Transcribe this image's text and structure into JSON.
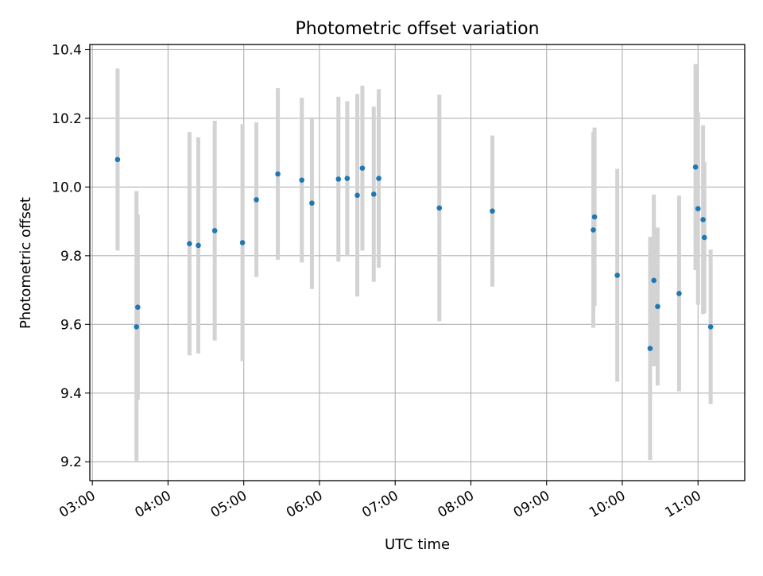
{
  "chart_data": {
    "type": "scatter",
    "title": "Photometric offset variation",
    "xlabel": "UTC time",
    "ylabel": "Photometric offset",
    "x_tick_labels": [
      "03:00",
      "04:00",
      "05:00",
      "06:00",
      "07:00",
      "08:00",
      "09:00",
      "10:00",
      "11:00"
    ],
    "y_tick_labels": [
      "9.2",
      "9.4",
      "9.6",
      "9.8",
      "10.0",
      "10.2",
      "10.4"
    ],
    "y_ticks": [
      9.2,
      9.4,
      9.6,
      9.8,
      10.0,
      10.2,
      10.4
    ],
    "xlim": [
      "02:58",
      "11:37"
    ],
    "ylim": [
      9.145,
      10.415
    ],
    "grid": true,
    "point_color": "#1f77b4",
    "errorbar_color": "#d3d3d3",
    "points": [
      {
        "x": "03:20",
        "y": 10.08,
        "err": 0.265
      },
      {
        "x": "03:35",
        "y": 9.593,
        "err": 0.395
      },
      {
        "x": "03:36",
        "y": 9.65,
        "err": 0.27
      },
      {
        "x": "04:17",
        "y": 9.835,
        "err": 0.325
      },
      {
        "x": "04:24",
        "y": 9.83,
        "err": 0.315
      },
      {
        "x": "04:37",
        "y": 9.873,
        "err": 0.32
      },
      {
        "x": "04:59",
        "y": 9.838,
        "err": 0.345
      },
      {
        "x": "05:10",
        "y": 9.963,
        "err": 0.225
      },
      {
        "x": "05:27",
        "y": 10.038,
        "err": 0.25
      },
      {
        "x": "05:46",
        "y": 10.02,
        "err": 0.24
      },
      {
        "x": "05:54",
        "y": 9.953,
        "err": 0.25
      },
      {
        "x": "06:15",
        "y": 10.023,
        "err": 0.24
      },
      {
        "x": "06:22",
        "y": 10.025,
        "err": 0.225
      },
      {
        "x": "06:30",
        "y": 9.976,
        "err": 0.295
      },
      {
        "x": "06:34",
        "y": 10.055,
        "err": 0.24
      },
      {
        "x": "06:43",
        "y": 9.979,
        "err": 0.255
      },
      {
        "x": "06:47",
        "y": 10.025,
        "err": 0.26
      },
      {
        "x": "07:35",
        "y": 9.939,
        "err": 0.33
      },
      {
        "x": "08:17",
        "y": 9.93,
        "err": 0.22
      },
      {
        "x": "09:37",
        "y": 9.875,
        "err": 0.285
      },
      {
        "x": "09:38",
        "y": 9.913,
        "err": 0.26
      },
      {
        "x": "09:56",
        "y": 9.743,
        "err": 0.31
      },
      {
        "x": "10:22",
        "y": 9.53,
        "err": 0.325
      },
      {
        "x": "10:25",
        "y": 9.728,
        "err": 0.25
      },
      {
        "x": "10:28",
        "y": 9.652,
        "err": 0.23
      },
      {
        "x": "10:45",
        "y": 9.69,
        "err": 0.285
      },
      {
        "x": "10:58",
        "y": 10.058,
        "err": 0.3
      },
      {
        "x": "11:00",
        "y": 9.937,
        "err": 0.28
      },
      {
        "x": "11:04",
        "y": 9.905,
        "err": 0.275
      },
      {
        "x": "11:05",
        "y": 9.853,
        "err": 0.22
      },
      {
        "x": "11:10",
        "y": 9.593,
        "err": 0.225
      }
    ]
  }
}
